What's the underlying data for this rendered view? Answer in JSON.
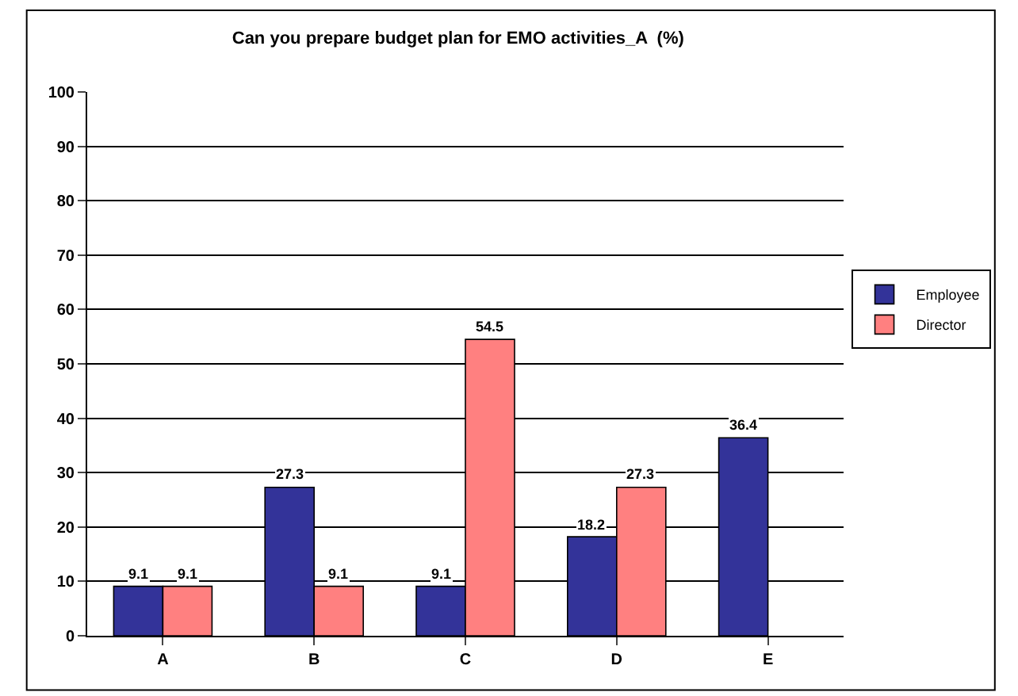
{
  "chart_data": {
    "type": "bar",
    "title": "Can you prepare budget plan for EMO activities_A  (%)",
    "categories": [
      "A",
      "B",
      "C",
      "D",
      "E"
    ],
    "series": [
      {
        "name": "Employee",
        "color": "#333399",
        "values": [
          9.1,
          27.3,
          9.1,
          18.2,
          36.4
        ]
      },
      {
        "name": "Director",
        "color": "#ff8080",
        "values": [
          9.1,
          9.1,
          54.5,
          27.3,
          null
        ]
      }
    ],
    "ylim": [
      0,
      100
    ],
    "yticks": [
      0,
      10,
      20,
      30,
      40,
      50,
      60,
      70,
      80,
      90,
      100
    ],
    "grid": "y",
    "legend": "right",
    "data_labels": true
  }
}
